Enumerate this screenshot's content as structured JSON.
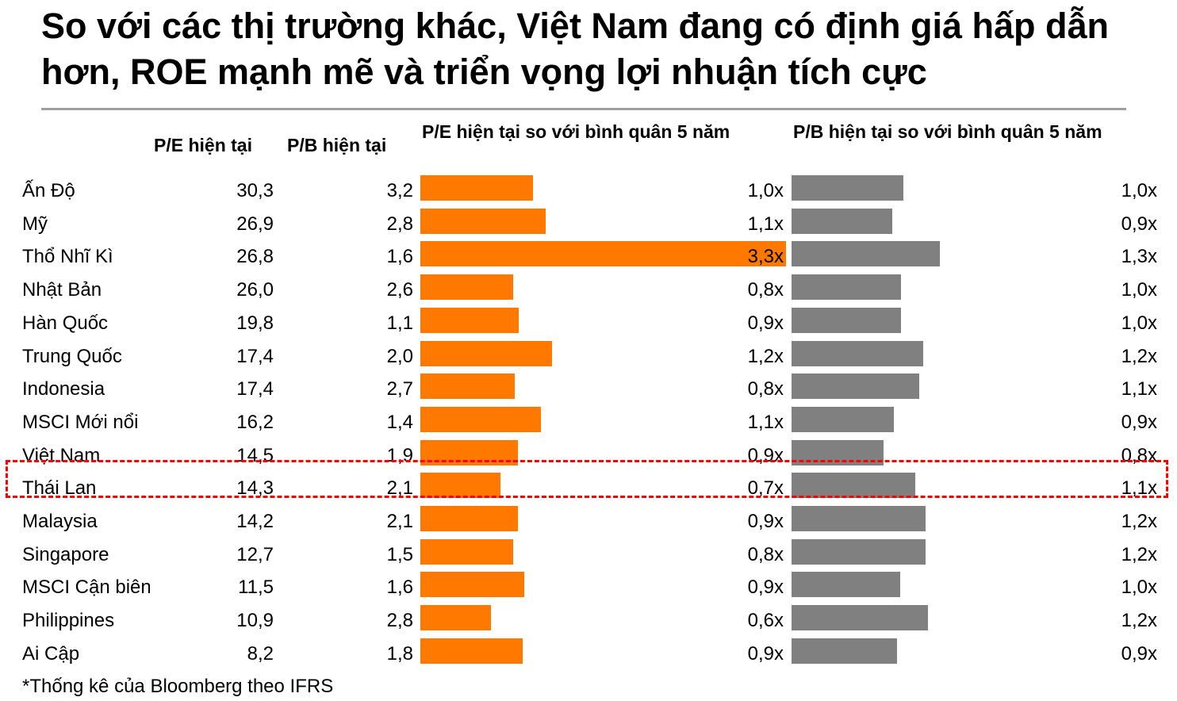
{
  "title": "So với các thị trường khác, Việt Nam đang có định giá hấp dẫn hơn, ROE mạnh mẽ và triển vọng lợi nhuận tích cực",
  "footnote": "*Thống kê của Bloomberg theo IFRS",
  "colors": {
    "pe_bar": "#ff7800",
    "pb_bar": "#808080",
    "highlight": "#ff0000",
    "rule": "#a0a0a0"
  },
  "chart_data": {
    "type": "table",
    "columns": [
      "P/E hiện tại",
      "P/B hiện tại",
      "P/E hiện tại so với bình quân 5 năm",
      "P/B hiện tại so với bình quân 5 năm"
    ],
    "highlighted_rows": [
      "Việt Nam",
      "Thái Lan"
    ],
    "rows": [
      {
        "name": "Ấn Độ",
        "pe": "30,3",
        "pb": "3,2",
        "pe_rel_label": "1,0x",
        "pe_rel": 1.02,
        "pb_rel_label": "1,0x",
        "pb_rel": 1.01
      },
      {
        "name": "Mỹ",
        "pe": "26,9",
        "pb": "2,8",
        "pe_rel_label": "1,1x",
        "pe_rel": 1.13,
        "pb_rel_label": "0,9x",
        "pb_rel": 0.91
      },
      {
        "name": "Thổ Nhĩ Kì",
        "pe": "26,8",
        "pb": "1,6",
        "pe_rel_label": "3,3x",
        "pe_rel": 3.3,
        "pb_rel_label": "1,3x",
        "pb_rel": 1.34
      },
      {
        "name": "Nhật Bản",
        "pe": "26,0",
        "pb": "2,6",
        "pe_rel_label": "0,8x",
        "pe_rel": 0.84,
        "pb_rel_label": "1,0x",
        "pb_rel": 0.99
      },
      {
        "name": "Hàn Quốc",
        "pe": "19,8",
        "pb": "1,1",
        "pe_rel_label": "0,9x",
        "pe_rel": 0.89,
        "pb_rel_label": "1,0x",
        "pb_rel": 0.99
      },
      {
        "name": "Trung Quốc",
        "pe": "17,4",
        "pb": "2,0",
        "pe_rel_label": "1,2x",
        "pe_rel": 1.19,
        "pb_rel_label": "1,2x",
        "pb_rel": 1.19
      },
      {
        "name": "Indonesia",
        "pe": "17,4",
        "pb": "2,7",
        "pe_rel_label": "0,8x",
        "pe_rel": 0.85,
        "pb_rel_label": "1,1x",
        "pb_rel": 1.15
      },
      {
        "name": "MSCI Mới nổi",
        "pe": "16,2",
        "pb": "1,4",
        "pe_rel_label": "1,1x",
        "pe_rel": 1.09,
        "pb_rel_label": "0,9x",
        "pb_rel": 0.92
      },
      {
        "name": "Việt Nam",
        "pe": "14,5",
        "pb": "1,9",
        "pe_rel_label": "0,9x",
        "pe_rel": 0.88,
        "pb_rel_label": "0,8x",
        "pb_rel": 0.83
      },
      {
        "name": "Thái Lan",
        "pe": "14,3",
        "pb": "2,1",
        "pe_rel_label": "0,7x",
        "pe_rel": 0.72,
        "pb_rel_label": "1,1x",
        "pb_rel": 1.12
      },
      {
        "name": "Malaysia",
        "pe": "14,2",
        "pb": "2,1",
        "pe_rel_label": "0,9x",
        "pe_rel": 0.88,
        "pb_rel_label": "1,2x",
        "pb_rel": 1.21
      },
      {
        "name": "Singapore",
        "pe": "12,7",
        "pb": "1,5",
        "pe_rel_label": "0,8x",
        "pe_rel": 0.84,
        "pb_rel_label": "1,2x",
        "pb_rel": 1.21
      },
      {
        "name": "MSCI Cận biên",
        "pe": "11,5",
        "pb": "1,6",
        "pe_rel_label": "0,9x",
        "pe_rel": 0.94,
        "pb_rel_label": "1,0x",
        "pb_rel": 0.98
      },
      {
        "name": "Philippines",
        "pe": "10,9",
        "pb": "2,8",
        "pe_rel_label": "0,6x",
        "pe_rel": 0.64,
        "pb_rel_label": "1,2x",
        "pb_rel": 1.23
      },
      {
        "name": "Ai Cập",
        "pe": "8,2",
        "pb": "1,8",
        "pe_rel_label": "0,9x",
        "pe_rel": 0.92,
        "pb_rel_label": "0,9x",
        "pb_rel": 0.95
      }
    ]
  }
}
